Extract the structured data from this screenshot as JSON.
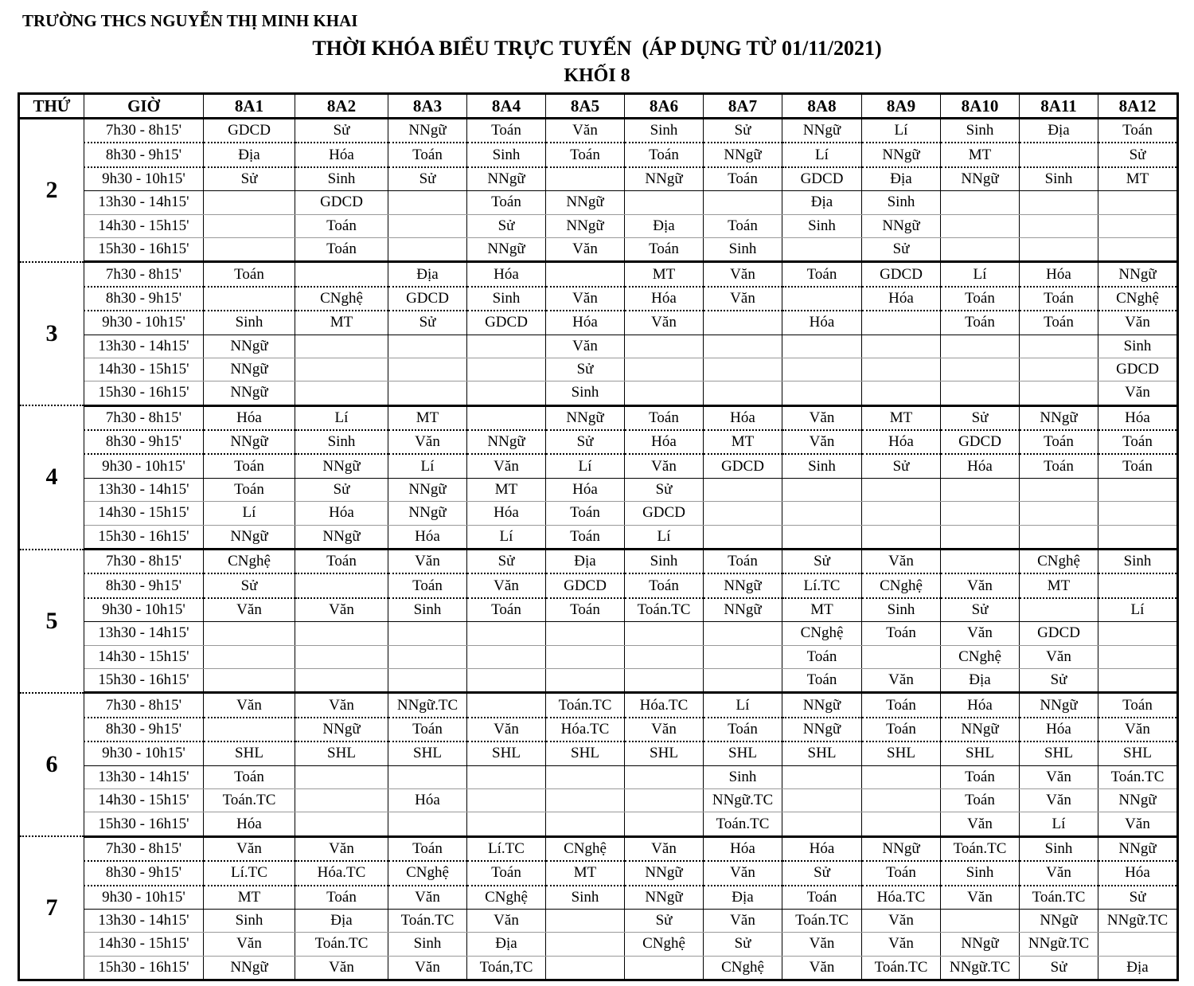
{
  "header": {
    "school": "TRƯỜNG THCS NGUYỄN THỊ MINH KHAI",
    "title": "THỜI KHÓA BIỂU TRỰC TUYẾN  (ÁP DỤNG TỪ 01/11/2021)",
    "grade": "KHỐI 8"
  },
  "table": {
    "col_day": "THỨ",
    "col_time": "GIỜ",
    "classes": [
      "8A1",
      "8A2",
      "8A3",
      "8A4",
      "8A5",
      "8A6",
      "8A7",
      "8A8",
      "8A9",
      "8A10",
      "8A11",
      "8A12"
    ],
    "times": [
      "7h30 - 8h15'",
      "8h30 - 9h15'",
      "9h30 - 10h15'",
      "13h30 - 14h15'",
      "14h30 - 15h15'",
      "15h30 - 16h15'"
    ],
    "days": [
      {
        "day": "2",
        "rows": [
          [
            "GDCD",
            "Sử",
            "NNgữ",
            "Toán",
            "Văn",
            "Sinh",
            "Sử",
            "NNgữ",
            "Lí",
            "Sinh",
            "Địa",
            "Toán"
          ],
          [
            "Địa",
            "Hóa",
            "Toán",
            "Sinh",
            "Toán",
            "Toán",
            "NNgữ",
            "Lí",
            "NNgữ",
            "MT",
            "",
            "Sử"
          ],
          [
            "Sử",
            "Sinh",
            "Sử",
            "NNgữ",
            "",
            "NNgữ",
            "Toán",
            "GDCD",
            "Địa",
            "NNgữ",
            "Sinh",
            "MT"
          ],
          [
            "",
            "GDCD",
            "",
            "Toán",
            "NNgữ",
            "",
            "",
            "Địa",
            "Sinh",
            "",
            "",
            ""
          ],
          [
            "",
            "Toán",
            "",
            "Sử",
            "NNgữ",
            "Địa",
            "Toán",
            "Sinh",
            "NNgữ",
            "",
            "",
            ""
          ],
          [
            "",
            "Toán",
            "",
            "NNgữ",
            "Văn",
            "Toán",
            "Sinh",
            "",
            "Sử",
            "",
            "",
            ""
          ]
        ]
      },
      {
        "day": "3",
        "rows": [
          [
            "Toán",
            "",
            "Địa",
            "Hóa",
            "",
            "MT",
            "Văn",
            "Toán",
            "GDCD",
            "Lí",
            "Hóa",
            "NNgữ"
          ],
          [
            "",
            "CNghệ",
            "GDCD",
            "Sinh",
            "Văn",
            "Hóa",
            "Văn",
            "",
            "Hóa",
            "Toán",
            "Toán",
            "CNghệ"
          ],
          [
            "Sinh",
            "MT",
            "Sử",
            "GDCD",
            "Hóa",
            "Văn",
            "",
            "Hóa",
            "",
            "Toán",
            "Toán",
            "Văn"
          ],
          [
            "NNgữ",
            "",
            "",
            "",
            "Văn",
            "",
            "",
            "",
            "",
            "",
            "",
            "Sinh"
          ],
          [
            "NNgữ",
            "",
            "",
            "",
            "Sử",
            "",
            "",
            "",
            "",
            "",
            "",
            "GDCD"
          ],
          [
            "NNgữ",
            "",
            "",
            "",
            "Sinh",
            "",
            "",
            "",
            "",
            "",
            "",
            "Văn"
          ]
        ]
      },
      {
        "day": "4",
        "rows": [
          [
            "Hóa",
            "Lí",
            "MT",
            "",
            "NNgữ",
            "Toán",
            "Hóa",
            "Văn",
            "MT",
            "Sử",
            "NNgữ",
            "Hóa"
          ],
          [
            "NNgữ",
            "Sinh",
            "Văn",
            "NNgữ",
            "Sử",
            "Hóa",
            "MT",
            "Văn",
            "Hóa",
            "GDCD",
            "Toán",
            "Toán"
          ],
          [
            "Toán",
            "NNgữ",
            "Lí",
            "Văn",
            "Lí",
            "Văn",
            "GDCD",
            "Sinh",
            "Sử",
            "Hóa",
            "Toán",
            "Toán"
          ],
          [
            "Toán",
            "Sử",
            "NNgữ",
            "MT",
            "Hóa",
            "Sử",
            "",
            "",
            "",
            "",
            "",
            ""
          ],
          [
            "Lí",
            "Hóa",
            "NNgữ",
            "Hóa",
            "Toán",
            "GDCD",
            "",
            "",
            "",
            "",
            "",
            ""
          ],
          [
            "NNgữ",
            "NNgữ",
            "Hóa",
            "Lí",
            "Toán",
            "Lí",
            "",
            "",
            "",
            "",
            "",
            ""
          ]
        ]
      },
      {
        "day": "5",
        "rows": [
          [
            "CNghệ",
            "Toán",
            "Văn",
            "Sử",
            "Địa",
            "Sinh",
            "Toán",
            "Sử",
            "Văn",
            "",
            "CNghệ",
            "Sinh"
          ],
          [
            "Sử",
            "",
            "Toán",
            "Văn",
            "GDCD",
            "Toán",
            "NNgữ",
            "Lí.TC",
            "CNghệ",
            "Văn",
            "MT",
            ""
          ],
          [
            "Văn",
            "Văn",
            "Sinh",
            "Toán",
            "Toán",
            "Toán.TC",
            "NNgữ",
            "MT",
            "Sinh",
            "Sử",
            "",
            "Lí"
          ],
          [
            "",
            "",
            "",
            "",
            "",
            "",
            "",
            "CNghệ",
            "Toán",
            "Văn",
            "GDCD",
            ""
          ],
          [
            "",
            "",
            "",
            "",
            "",
            "",
            "",
            "Toán",
            "",
            "CNghệ",
            "Văn",
            ""
          ],
          [
            "",
            "",
            "",
            "",
            "",
            "",
            "",
            "Toán",
            "Văn",
            "Địa",
            "Sử",
            ""
          ]
        ]
      },
      {
        "day": "6",
        "rows": [
          [
            "Văn",
            "Văn",
            "NNgữ.TC",
            "",
            "Toán.TC",
            "Hóa.TC",
            "Lí",
            "NNgữ",
            "Toán",
            "Hóa",
            "NNgữ",
            "Toán"
          ],
          [
            "",
            "NNgữ",
            "Toán",
            "Văn",
            "Hóa.TC",
            "Văn",
            "Toán",
            "NNgữ",
            "Toán",
            "NNgữ",
            "Hóa",
            "Văn"
          ],
          [
            "SHL",
            "SHL",
            "SHL",
            "SHL",
            "SHL",
            "SHL",
            "SHL",
            "SHL",
            "SHL",
            "SHL",
            "SHL",
            "SHL"
          ],
          [
            "Toán",
            "",
            "",
            "",
            "",
            "",
            "Sinh",
            "",
            "",
            "Toán",
            "Văn",
            "Toán.TC"
          ],
          [
            "Toán.TC",
            "",
            "Hóa",
            "",
            "",
            "",
            "NNgữ.TC",
            "",
            "",
            "Toán",
            "Văn",
            "NNgữ"
          ],
          [
            "Hóa",
            "",
            "",
            "",
            "",
            "",
            "Toán.TC",
            "",
            "",
            "Văn",
            "Lí",
            "Văn"
          ]
        ]
      },
      {
        "day": "7",
        "rows": [
          [
            "Văn",
            "Văn",
            "Toán",
            "Lí.TC",
            "CNghệ",
            "Văn",
            "Hóa",
            "Hóa",
            "NNgữ",
            "Toán.TC",
            "Sinh",
            "NNgữ"
          ],
          [
            "Lí.TC",
            "Hóa.TC",
            "CNghệ",
            "Toán",
            "MT",
            "NNgữ",
            "Văn",
            "Sử",
            "Toán",
            "Sinh",
            "Văn",
            "Hóa"
          ],
          [
            "MT",
            "Toán",
            "Văn",
            "CNghệ",
            "Sinh",
            "NNgữ",
            "Địa",
            "Toán",
            "Hóa.TC",
            "Văn",
            "Toán.TC",
            "Sử"
          ],
          [
            "Sinh",
            "Địa",
            "Toán.TC",
            "Văn",
            "",
            "Sử",
            "Văn",
            "Toán.TC",
            "Văn",
            "",
            "NNgữ",
            "NNgữ.TC"
          ],
          [
            "Văn",
            "Toán.TC",
            "Sinh",
            "Địa",
            "",
            "CNghệ",
            "Sử",
            "Văn",
            "Văn",
            "NNgữ",
            "NNgữ.TC",
            ""
          ],
          [
            "NNgữ",
            "Văn",
            "Văn",
            "Toán,TC",
            "",
            "",
            "CNghệ",
            "Văn",
            "Toán.TC",
            "NNgữ.TC",
            "Sử",
            "Địa"
          ]
        ]
      }
    ]
  }
}
